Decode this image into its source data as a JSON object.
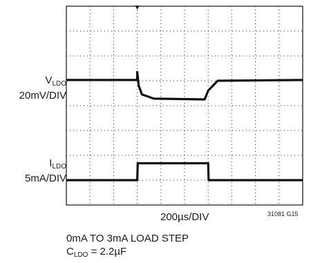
{
  "chart_data": {
    "type": "line",
    "title": "",
    "grid": true,
    "grid_divisions": {
      "x": 10,
      "y": 8
    },
    "timebase": "200µs/DIV",
    "figure_id": "31081 G15",
    "caption_line1": "0mA TO 3mA LOAD STEP",
    "caption_line2_base": "C",
    "caption_line2_sub": "LDO",
    "caption_line2_rest": " = 2.2µF",
    "trigger_marker_time_div": 3.0,
    "channels": [
      {
        "label_base": "V",
        "label_sub": "LDO",
        "scale": "20mV/DIV",
        "x_div": [
          0,
          3.0,
          3.0,
          3.06,
          3.2,
          3.7,
          5.85,
          6.0,
          6.4,
          10
        ],
        "y_div": [
          5.03,
          5.03,
          5.35,
          4.8,
          4.45,
          4.28,
          4.25,
          4.6,
          5.0,
          5.03
        ]
      },
      {
        "label_base": "I",
        "label_sub": "LDO",
        "scale": "5mA/DIV",
        "x_div": [
          0,
          3.0,
          3.02,
          6.0,
          6.02,
          10
        ],
        "y_div": [
          1.0,
          1.0,
          1.68,
          1.68,
          1.0,
          1.0
        ]
      }
    ]
  }
}
